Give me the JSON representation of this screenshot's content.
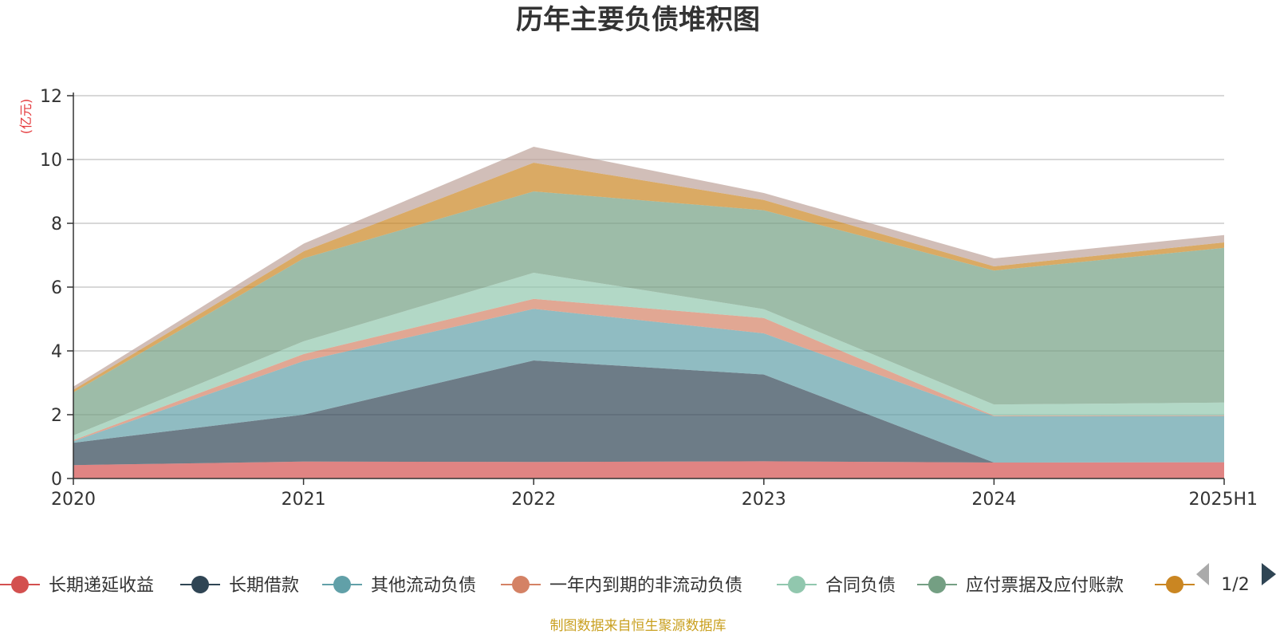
{
  "chart_data": {
    "type": "area",
    "stacked": true,
    "title": "历年主要负债堆积图",
    "ylabel": "(亿元)",
    "xlabel": "",
    "categories": [
      "2020",
      "2021",
      "2022",
      "2023",
      "2024",
      "2025H1"
    ],
    "ylim": [
      0,
      12
    ],
    "yticks": [
      0,
      2,
      4,
      6,
      8,
      10,
      12
    ],
    "grid": true,
    "legend_position": "bottom",
    "series": [
      {
        "name": "长期递延收益",
        "color": "#d3504f",
        "values": [
          0.42,
          0.53,
          0.52,
          0.54,
          0.5,
          0.51
        ]
      },
      {
        "name": "长期借款",
        "color": "#2f4554",
        "values": [
          0.7,
          1.47,
          3.18,
          2.72,
          0.0,
          0.0
        ]
      },
      {
        "name": "其他流动负债",
        "color": "#61a0a8",
        "values": [
          0.05,
          1.68,
          1.62,
          1.29,
          1.45,
          1.45
        ]
      },
      {
        "name": "一年内到期的非流动负债",
        "color": "#d48265",
        "values": [
          0.03,
          0.22,
          0.31,
          0.48,
          0.02,
          0.02
        ]
      },
      {
        "name": "合同负债",
        "color": "#91c7ae",
        "values": [
          0.15,
          0.4,
          0.82,
          0.28,
          0.35,
          0.4
        ]
      },
      {
        "name": "应付票据及应付账款",
        "color": "#749f83",
        "values": [
          1.35,
          2.6,
          2.55,
          3.1,
          4.2,
          4.85
        ]
      },
      {
        "name": "",
        "color": "#ca8622",
        "values": [
          0.08,
          0.22,
          0.9,
          0.32,
          0.13,
          0.17
        ]
      },
      {
        "name": "",
        "color": "#bda29a",
        "values": [
          0.1,
          0.24,
          0.5,
          0.22,
          0.25,
          0.23
        ]
      }
    ]
  },
  "legend": {
    "page_indicator": "1/2",
    "prev_label": "上一页",
    "next_label": "下一页"
  },
  "footer": {
    "source": "制图数据来自恒生聚源数据库"
  },
  "colors": {
    "title": "#333333",
    "ylabel": "#e4393c",
    "axis": "#333333",
    "grid": "#cccccc",
    "footer": "#c9a020",
    "pager_inactive": "#aaaaaa",
    "pager_active": "#2f4554"
  }
}
